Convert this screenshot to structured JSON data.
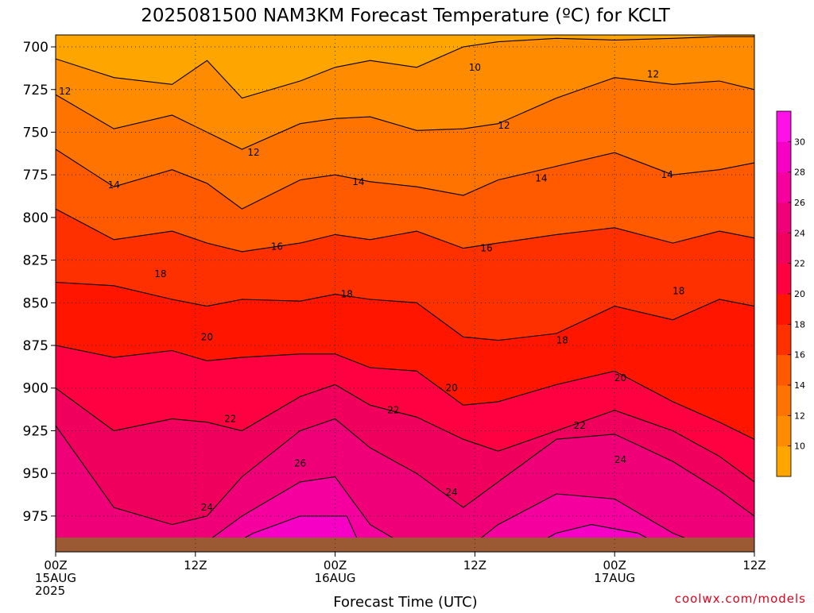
{
  "chart_data": {
    "type": "heatmap",
    "title": "2025081500 NAM3KM Forecast Temperature (ºC) for KCLT",
    "xlabel": "Forecast Time (UTC)",
    "ylabel": "",
    "credit": "coolwx.com/models",
    "x_ticks": [
      {
        "hour": 0,
        "lines": [
          "00Z",
          "15AUG",
          "2025"
        ]
      },
      {
        "hour": 12,
        "lines": [
          "12Z"
        ]
      },
      {
        "hour": 24,
        "lines": [
          "00Z",
          "16AUG"
        ]
      },
      {
        "hour": 36,
        "lines": [
          "12Z"
        ]
      },
      {
        "hour": 48,
        "lines": [
          "00Z",
          "17AUG"
        ]
      },
      {
        "hour": 60,
        "lines": [
          "12Z"
        ]
      }
    ],
    "x_range_hours": [
      0,
      60
    ],
    "y_ticks": [
      700,
      725,
      750,
      775,
      800,
      825,
      850,
      875,
      900,
      925,
      950,
      975
    ],
    "y_range_hpa": [
      693,
      996
    ],
    "grid": true,
    "colorbar_levels": [
      10,
      12,
      14,
      16,
      18,
      20,
      22,
      24,
      26,
      28,
      30
    ],
    "colorbar_colors": [
      "#ffa500",
      "#ff8c00",
      "#ff7300",
      "#ff5a00",
      "#ff3000",
      "#ff1500",
      "#ff0040",
      "#f0005c",
      "#f00078",
      "#f5009f",
      "#f700c5",
      "#ff10e6"
    ],
    "contours": [
      {
        "level": 10,
        "label": "10",
        "hours": [
          0,
          5,
          10,
          13,
          16,
          21,
          24,
          27,
          31,
          35,
          38,
          43,
          48,
          53,
          57,
          60
        ],
        "pressure": [
          707,
          718,
          722,
          708,
          730,
          720,
          712,
          708,
          712,
          700,
          697,
          695,
          696,
          695,
          694,
          694
        ]
      },
      {
        "level": 12,
        "label": "12",
        "hours": [
          0,
          5,
          10,
          13,
          16,
          21,
          24,
          27,
          31,
          35,
          38,
          43,
          48,
          53,
          57,
          60
        ],
        "pressure": [
          728,
          748,
          740,
          750,
          760,
          745,
          742,
          741,
          749,
          748,
          745,
          730,
          718,
          722,
          720,
          725
        ]
      },
      {
        "level": 14,
        "label": "14",
        "hours": [
          0,
          5,
          10,
          13,
          16,
          21,
          24,
          27,
          31,
          35,
          38,
          43,
          48,
          53,
          57,
          60
        ],
        "pressure": [
          760,
          782,
          772,
          780,
          795,
          778,
          775,
          779,
          782,
          787,
          778,
          770,
          762,
          775,
          772,
          768
        ]
      },
      {
        "level": 16,
        "label": "16",
        "hours": [
          0,
          5,
          10,
          13,
          16,
          21,
          24,
          27,
          31,
          35,
          38,
          43,
          48,
          53,
          57,
          60
        ],
        "pressure": [
          795,
          813,
          808,
          815,
          820,
          815,
          810,
          813,
          808,
          818,
          815,
          810,
          806,
          815,
          808,
          812
        ]
      },
      {
        "level": 18,
        "label": "18",
        "hours": [
          0,
          5,
          10,
          13,
          16,
          21,
          24,
          27,
          31,
          35,
          38,
          43,
          48,
          53,
          57,
          60
        ],
        "pressure": [
          838,
          840,
          848,
          852,
          848,
          849,
          845,
          848,
          850,
          870,
          872,
          868,
          852,
          860,
          848,
          852
        ]
      },
      {
        "level": 20,
        "label": "20",
        "hours": [
          0,
          5,
          10,
          13,
          16,
          21,
          24,
          27,
          31,
          35,
          38,
          43,
          48,
          53,
          57,
          60
        ],
        "pressure": [
          875,
          882,
          878,
          884,
          882,
          880,
          880,
          888,
          890,
          910,
          908,
          898,
          890,
          908,
          920,
          930
        ]
      },
      {
        "level": 22,
        "label": "22",
        "hours": [
          0,
          5,
          10,
          13,
          16,
          21,
          24,
          27,
          31,
          35,
          38,
          43,
          48,
          53,
          57,
          60
        ],
        "pressure": [
          900,
          925,
          918,
          920,
          925,
          905,
          898,
          910,
          917,
          930,
          937,
          925,
          913,
          925,
          940,
          955
        ]
      },
      {
        "level": 24,
        "label": "24",
        "hours": [
          0,
          5,
          10,
          13,
          16,
          21,
          24,
          27,
          31,
          35,
          38,
          43,
          48,
          53,
          57,
          60
        ],
        "pressure": [
          922,
          970,
          980,
          975,
          952,
          925,
          918,
          935,
          950,
          970,
          955,
          930,
          927,
          943,
          960,
          975
        ]
      },
      {
        "level": 26,
        "label": "26",
        "hours": [
          0,
          5,
          10,
          13,
          16,
          21,
          24,
          27,
          31,
          35,
          38,
          43,
          48,
          53,
          57,
          60
        ],
        "pressure": [
          996,
          996,
          996,
          990,
          975,
          955,
          952,
          980,
          996,
          996,
          980,
          962,
          965,
          985,
          996,
          996
        ]
      },
      {
        "level": 28,
        "label": "",
        "hours": [
          0,
          10,
          14,
          17,
          21,
          25,
          26,
          28,
          40,
          43,
          46,
          50,
          53,
          60
        ],
        "pressure": [
          996,
          996,
          996,
          985,
          975,
          975,
          990,
          996,
          996,
          985,
          980,
          985,
          996,
          996
        ]
      }
    ],
    "contour_labels": [
      {
        "value": "10",
        "hour": 36,
        "pressure": 712
      },
      {
        "value": "12",
        "hour": 0.8,
        "pressure": 726
      },
      {
        "value": "12",
        "hour": 17,
        "pressure": 762
      },
      {
        "value": "12",
        "hour": 38.5,
        "pressure": 746
      },
      {
        "value": "12",
        "hour": 51.3,
        "pressure": 716
      },
      {
        "value": "14",
        "hour": 5,
        "pressure": 781
      },
      {
        "value": "14",
        "hour": 26,
        "pressure": 779
      },
      {
        "value": "14",
        "hour": 41.7,
        "pressure": 777
      },
      {
        "value": "14",
        "hour": 52.5,
        "pressure": 775
      },
      {
        "value": "16",
        "hour": 19,
        "pressure": 817
      },
      {
        "value": "16",
        "hour": 37,
        "pressure": 818
      },
      {
        "value": "18",
        "hour": 9,
        "pressure": 833
      },
      {
        "value": "18",
        "hour": 25,
        "pressure": 845
      },
      {
        "value": "18",
        "hour": 43.5,
        "pressure": 872
      },
      {
        "value": "18",
        "hour": 53.5,
        "pressure": 843
      },
      {
        "value": "20",
        "hour": 13,
        "pressure": 870
      },
      {
        "value": "20",
        "hour": 34,
        "pressure": 900
      },
      {
        "value": "20",
        "hour": 48.5,
        "pressure": 894
      },
      {
        "value": "22",
        "hour": 15,
        "pressure": 918
      },
      {
        "value": "22",
        "hour": 29,
        "pressure": 913
      },
      {
        "value": "22",
        "hour": 45,
        "pressure": 922
      },
      {
        "value": "24",
        "hour": 13,
        "pressure": 970
      },
      {
        "value": "24",
        "hour": 34,
        "pressure": 961
      },
      {
        "value": "24",
        "hour": 48.5,
        "pressure": 942
      },
      {
        "value": "26",
        "hour": 21,
        "pressure": 944
      }
    ],
    "terrain_color": "#9b5a34"
  }
}
